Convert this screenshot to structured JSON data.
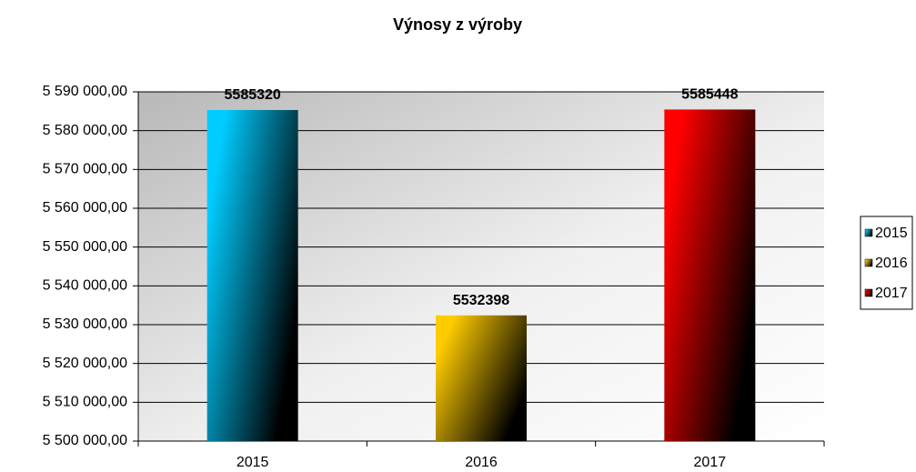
{
  "chart_data": {
    "type": "bar",
    "title": "Výnosy z výroby",
    "categories": [
      "2015",
      "2016",
      "2017"
    ],
    "values": [
      5585320,
      5532398,
      5585448
    ],
    "colors": [
      "#00ccff",
      "#ffcc00",
      "#ff0000"
    ],
    "ylim": [
      5500000,
      5590000
    ],
    "yticks": [
      {
        "value": 5500000,
        "label": "5 500 000,00"
      },
      {
        "value": 5510000,
        "label": "5 510 000,00"
      },
      {
        "value": 5520000,
        "label": "5 520 000,00"
      },
      {
        "value": 5530000,
        "label": "5 530 000,00"
      },
      {
        "value": 5540000,
        "label": "5 540 000,00"
      },
      {
        "value": 5550000,
        "label": "5 550 000,00"
      },
      {
        "value": 5560000,
        "label": "5 560 000,00"
      },
      {
        "value": 5570000,
        "label": "5 570 000,00"
      },
      {
        "value": 5580000,
        "label": "5 580 000,00"
      },
      {
        "value": 5590000,
        "label": "5 590 000,00"
      }
    ],
    "grid": true,
    "legend": "right"
  }
}
